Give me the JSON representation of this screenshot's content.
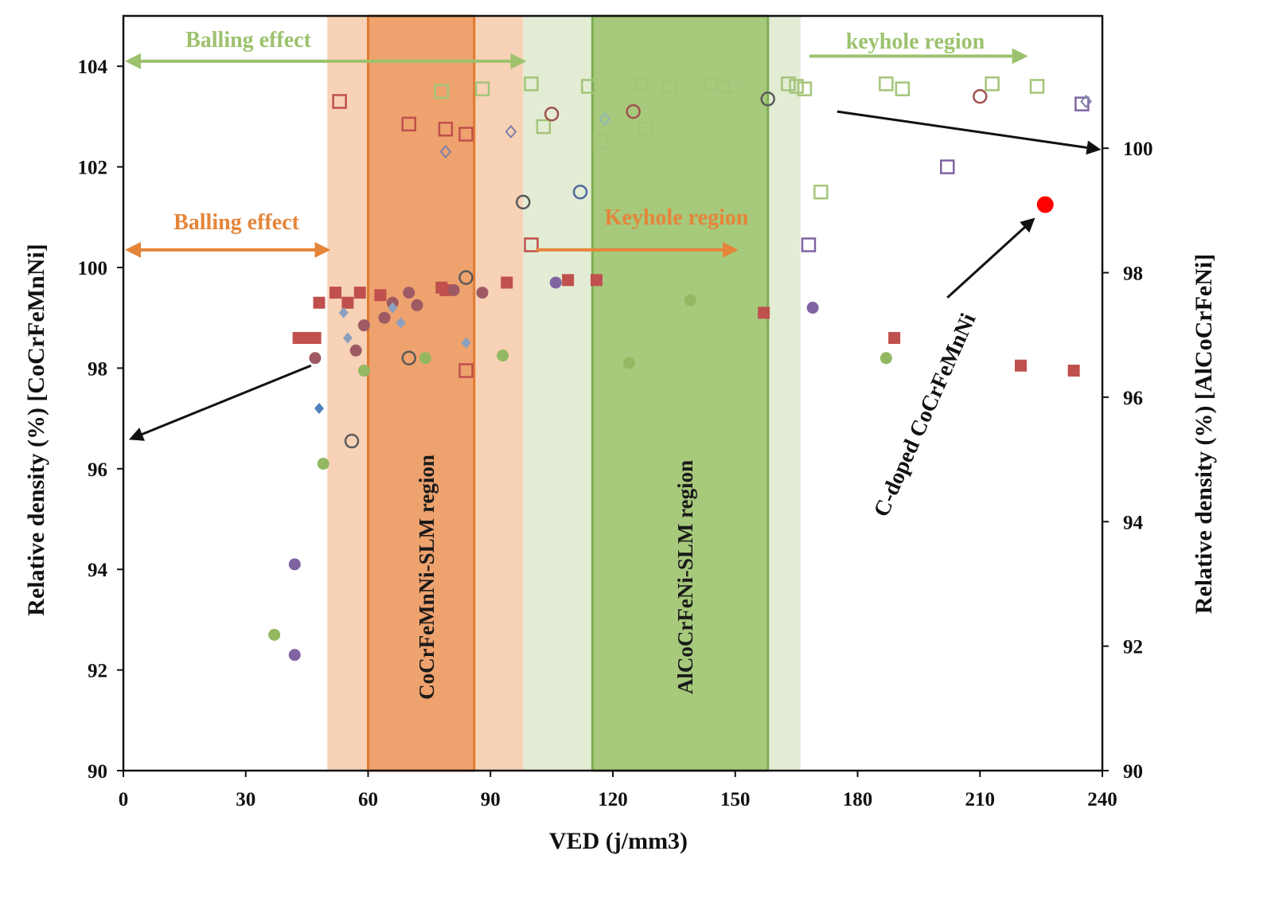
{
  "chart_data": {
    "type": "scatter",
    "xlabel": "VED (j/mm3)",
    "ylabel": "Relative density (%) [CoCrFeMnNi]",
    "y2label": "Relative density (%) [AlCoCrFeNi]",
    "xlim": [
      0,
      240
    ],
    "ylim": [
      90,
      105
    ],
    "y2lim": [
      90,
      101
    ],
    "xticks": [
      "0",
      "30",
      "60",
      "90",
      "120",
      "150",
      "180",
      "210",
      "240"
    ],
    "yticks": [
      "90",
      "92",
      "94",
      "96",
      "98",
      "100",
      "102",
      "104"
    ],
    "y2ticks": [
      "90",
      "92",
      "94",
      "96",
      "98",
      "100"
    ],
    "grid": false,
    "colors": {
      "orange_shade": "#f8d2b6",
      "orange_band": "#eea26e",
      "orange_border": "#e07a30",
      "green_shade": "#e3ecd4",
      "green_band": "#a7c97c",
      "green_border": "#7fae52",
      "orange_text": "#e5853a",
      "green_text": "#9cc26d",
      "highlight": "#ff0000"
    },
    "regions": [
      {
        "label": "",
        "x": [
          50,
          98
        ],
        "fill": "orange_shade"
      },
      {
        "label": "",
        "x": [
          98,
          166
        ],
        "fill": "green_shade"
      },
      {
        "label": "CoCrFeMnNi-SLM region",
        "x": [
          60,
          86
        ],
        "fill": "orange_band",
        "border": "orange_border"
      },
      {
        "label": "AlCoCrFeNi-SLM region",
        "x": [
          115,
          158
        ],
        "fill": "green_band",
        "border": "green_border"
      }
    ],
    "annotations": [
      {
        "id": "balling-green",
        "text": "Balling effect",
        "color": "green_text"
      },
      {
        "id": "keyhole-green",
        "text": "keyhole region",
        "color": "green_text"
      },
      {
        "id": "balling-orange",
        "text": "Balling effect",
        "color": "orange_text"
      },
      {
        "id": "keyhole-orange",
        "text": "Keyhole region",
        "color": "orange_text"
      },
      {
        "id": "c-doped",
        "text": "C-doped CoCrFeMnNi",
        "color": "#111111"
      }
    ],
    "arrows": [
      {
        "id": "balling-green-arrow",
        "x": [
          0,
          98
        ],
        "y": 104.1,
        "both": true,
        "color": "green_text"
      },
      {
        "id": "keyhole-green-arrow",
        "x": [
          167,
          221
        ],
        "y": 104.2,
        "both": false,
        "color": "green_text"
      },
      {
        "id": "balling-orange-arrow",
        "x": [
          0,
          50
        ],
        "y": 100.35,
        "both": true,
        "color": "orange_text"
      },
      {
        "id": "keyhole-orange-arrow",
        "x": [
          100,
          150
        ],
        "y": 100.35,
        "both": false,
        "color": "orange_text"
      }
    ],
    "pointer_arrows": [
      {
        "id": "left-axis-pointer",
        "from": [
          46,
          98.05
        ],
        "to": [
          2,
          96.6
        ]
      },
      {
        "id": "right-axis-pointer",
        "from": [
          175,
          103.1
        ],
        "to": [
          239,
          102.35
        ]
      },
      {
        "id": "c-doped-pointer",
        "from": [
          202,
          99.4
        ],
        "to": [
          223,
          100.95
        ]
      }
    ],
    "series": [
      {
        "marker": "square-filled",
        "color": "#c0504d",
        "points": [
          [
            48,
            99.3
          ],
          [
            52,
            99.5
          ],
          [
            55,
            99.3
          ],
          [
            58,
            99.5
          ],
          [
            63,
            99.45
          ],
          [
            78,
            99.6
          ],
          [
            79,
            99.55
          ],
          [
            94,
            99.7
          ],
          [
            109,
            99.75
          ],
          [
            116,
            99.75
          ],
          [
            157,
            99.1
          ],
          [
            189,
            98.6
          ],
          [
            220,
            98.05
          ],
          [
            233,
            97.95
          ]
        ]
      },
      {
        "marker": "square-filled-wide",
        "color": "#c0504d",
        "points": [
          [
            45,
            98.6
          ]
        ]
      },
      {
        "marker": "circle-filled",
        "color": "#9e5a63",
        "points": [
          [
            47,
            98.2
          ],
          [
            57,
            98.35
          ],
          [
            59,
            98.85
          ],
          [
            64,
            99.0
          ],
          [
            66,
            99.3
          ],
          [
            70,
            99.5
          ],
          [
            72,
            99.25
          ],
          [
            81,
            99.55
          ],
          [
            88,
            99.5
          ]
        ]
      },
      {
        "marker": "circle-filled",
        "color": "#8064a2",
        "points": [
          [
            42,
            94.1
          ],
          [
            42,
            92.3
          ],
          [
            106,
            99.7
          ],
          [
            169,
            99.2
          ]
        ]
      },
      {
        "marker": "circle-filled",
        "color": "#93b861",
        "points": [
          [
            37,
            92.7
          ],
          [
            49,
            96.1
          ],
          [
            59,
            97.95
          ],
          [
            74,
            98.2
          ],
          [
            93,
            98.25
          ],
          [
            124,
            98.1
          ],
          [
            139,
            99.35
          ],
          [
            187,
            98.2
          ]
        ]
      },
      {
        "marker": "diamond-filled",
        "color": "#4f81bd",
        "points": [
          [
            48,
            97.2
          ]
        ]
      },
      {
        "marker": "diamond-filled",
        "color": "#8aa0c0",
        "points": [
          [
            54,
            99.1
          ],
          [
            55,
            98.6
          ],
          [
            66,
            99.2
          ],
          [
            68,
            98.9
          ],
          [
            84,
            98.5
          ]
        ]
      },
      {
        "marker": "circle-filled",
        "color": "#ff0000",
        "size": "large",
        "points": [
          [
            226,
            101.25
          ]
        ]
      },
      {
        "marker": "square-open",
        "color": "#a3c57a",
        "points": [
          [
            78,
            103.5
          ],
          [
            88,
            103.55
          ],
          [
            100,
            103.65
          ],
          [
            103,
            102.8
          ],
          [
            114,
            103.6
          ],
          [
            117,
            102.5
          ],
          [
            127,
            103.65
          ],
          [
            128,
            102.75
          ],
          [
            134,
            103.6
          ],
          [
            144,
            103.65
          ],
          [
            147,
            103.6
          ],
          [
            150,
            103.6
          ],
          [
            163,
            103.65
          ],
          [
            165,
            103.6
          ],
          [
            167,
            103.55
          ],
          [
            171,
            101.5
          ],
          [
            187,
            103.65
          ],
          [
            191,
            103.55
          ],
          [
            213,
            103.65
          ],
          [
            224,
            103.6
          ]
        ]
      },
      {
        "marker": "square-open",
        "color": "#c0504d",
        "points": [
          [
            53,
            103.3
          ],
          [
            70,
            102.85
          ],
          [
            79,
            102.75
          ],
          [
            84,
            102.65
          ],
          [
            84,
            97.95
          ],
          [
            100,
            100.45
          ]
        ]
      },
      {
        "marker": "square-open",
        "color": "#8064a2",
        "points": [
          [
            202,
            102.0
          ],
          [
            168,
            100.45
          ],
          [
            235,
            103.25
          ]
        ]
      },
      {
        "marker": "circle-open",
        "color": "#a0524f",
        "points": [
          [
            105,
            103.05
          ],
          [
            125,
            103.1
          ],
          [
            210,
            103.4
          ]
        ]
      },
      {
        "marker": "circle-open",
        "color": "#5a5a5a",
        "points": [
          [
            56,
            96.55
          ],
          [
            70,
            98.2
          ],
          [
            84,
            99.8
          ],
          [
            98,
            101.3
          ],
          [
            158,
            103.35
          ]
        ]
      },
      {
        "marker": "circle-open",
        "color": "#4f6a9d",
        "points": [
          [
            112,
            101.5
          ]
        ]
      },
      {
        "marker": "diamond-open",
        "color": "#7f7fa8",
        "points": [
          [
            79,
            102.3
          ],
          [
            95,
            102.7
          ],
          [
            236,
            103.3
          ]
        ]
      },
      {
        "marker": "diamond-open",
        "color": "#8fb8b0",
        "points": [
          [
            118,
            102.95
          ]
        ]
      }
    ]
  }
}
